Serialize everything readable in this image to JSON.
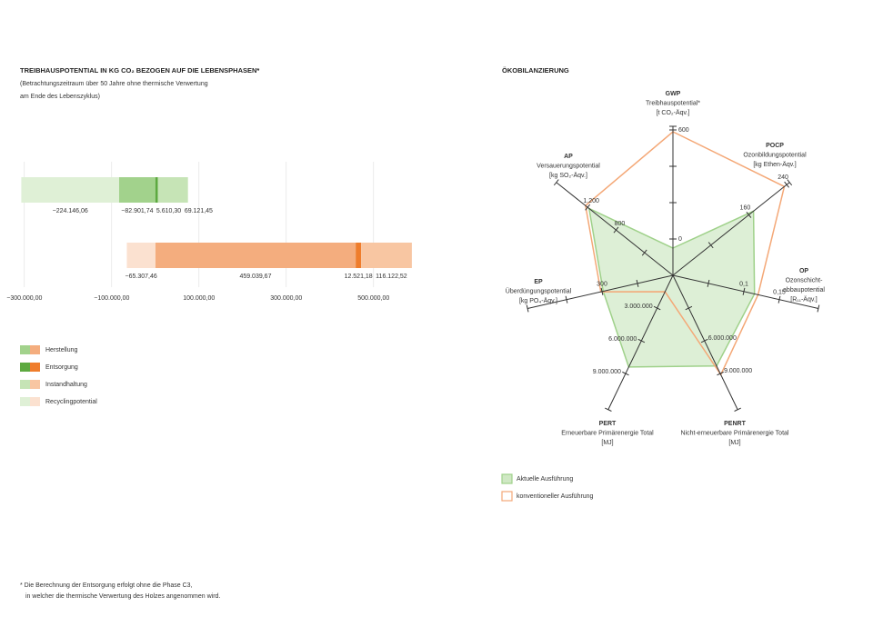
{
  "chart_data": [
    {
      "type": "bar",
      "orientation": "horizontal",
      "stacked": true,
      "title": "TREIBHAUSPOTENTIAL IN KG CO₂ BEZOGEN AUF DIE LEBENSPHASEN*",
      "subtitle": [
        "(Betrachtungszeitraum über 50 Jahre ohne thermische Verwertung",
        "am Ende des Lebenszyklus)"
      ],
      "categories": [
        null,
        null
      ],
      "series": [
        {
          "name": "Herstellung",
          "colors": [
            "#a2d28c",
            "#f4ad7e"
          ],
          "values": [
            -82901.74,
            459039.67
          ],
          "value_labels": [
            "−82.901,74",
            "459.039,67"
          ]
        },
        {
          "name": "Entsorgung",
          "colors": [
            "#5da940",
            "#ef7d2c"
          ],
          "values": [
            5610.3,
            12521.18
          ],
          "value_labels": [
            "5.610,30",
            "12.521,18"
          ]
        },
        {
          "name": "Instandhaltung",
          "colors": [
            "#c6e4b6",
            "#f8c6a2"
          ],
          "values": [
            69121.45,
            116122.52
          ],
          "value_labels": [
            "69.121,45",
            "116.122,52"
          ]
        },
        {
          "name": "Recyclingpotential",
          "colors": [
            "#dff0d6",
            "#fbe1d0"
          ],
          "values": [
            -224146.06,
            -65307.46
          ],
          "value_labels": [
            "−224.146,06",
            "−65.307,46"
          ]
        }
      ],
      "xlim": [
        -310000,
        590000
      ],
      "xticks": [
        {
          "value": -300000,
          "label": "−300.000,00"
        },
        {
          "value": -100000,
          "label": "−100.000,00"
        },
        {
          "value": 100000,
          "label": "100.000,00"
        },
        {
          "value": 300000,
          "label": "300.000,00"
        },
        {
          "value": 500000,
          "label": "500.000,00"
        }
      ],
      "grid": true
    },
    {
      "type": "radar",
      "title": "ÖKOBILANZIERUNG",
      "axes": [
        {
          "name": "GWP",
          "description": [
            "Treibhauspotential*"
          ],
          "unit": "[t CO₂-Äqv.]",
          "lim": [
            -200,
            600
          ],
          "ticks": [
            0,
            600
          ],
          "minor_ticks": [
            200,
            400
          ]
        },
        {
          "name": "POCP",
          "description": [
            "Ozonbildungspotential"
          ],
          "unit": "[kg Ethen-Äqv.]",
          "lim": [
            0,
            240
          ],
          "ticks": [
            160,
            240
          ],
          "minor_ticks": [
            80
          ]
        },
        {
          "name": "OP",
          "description": [
            "Ozonschicht-",
            "abbaupotential"
          ],
          "unit": "[R₁₁-Äqv.]",
          "lim": [
            0,
            0.2
          ],
          "ticks": [
            {
              "value": 0.1,
              "label": "0,1"
            },
            {
              "value": 0.15,
              "label": "0,15"
            }
          ],
          "minor_ticks": [
            0.05
          ]
        },
        {
          "name": "PENRT",
          "description": [
            "Nicht-erneuerbare Primärenergie Total"
          ],
          "unit": "[MJ]",
          "lim": [
            0,
            12000000
          ],
          "ticks": [
            {
              "value": 6000000,
              "label": "6.000.000"
            },
            {
              "value": 9000000,
              "label": "9.000.000"
            }
          ],
          "minor_ticks": [
            3000000
          ]
        },
        {
          "name": "PERT",
          "description": [
            "Erneuerbare Primärenergie Total"
          ],
          "unit": "[MJ]",
          "lim": [
            0,
            12000000
          ],
          "ticks": [
            {
              "value": 3000000,
              "label": "3.000.000"
            },
            {
              "value": 6000000,
              "label": "6.000.000"
            },
            {
              "value": 9000000,
              "label": "9.000.000"
            }
          ],
          "minor_ticks": []
        },
        {
          "name": "EP",
          "description": [
            "Überdüngungspotential"
          ],
          "unit": "[kg PO₄-Äqv.]",
          "lim": [
            0,
            600
          ],
          "ticks": [
            300
          ],
          "minor_ticks": [
            150,
            450
          ]
        },
        {
          "name": "AP",
          "description": [
            "Versauerungspotential"
          ],
          "unit": "[kg SO₂-Äqv.]",
          "lim": [
            0,
            1600
          ],
          "ticks": [
            800,
            {
              "value": 1200,
              "label": "1.200"
            }
          ],
          "minor_ticks": [
            400
          ]
        }
      ],
      "series": [
        {
          "name": "Aktuelle Ausführung",
          "color": "#9fd18a",
          "fill": true,
          "values": [
            -50,
            170,
            0.115,
            8300000,
            8400000,
            295,
            1180
          ]
        },
        {
          "name": "konventioneller Ausführung",
          "color": "#f4a877",
          "fill": false,
          "values": [
            590,
            235,
            0.12,
            9100000,
            1500000,
            305,
            1230
          ]
        }
      ]
    }
  ],
  "footnote": [
    "* Die Berechnung der Entsorgung erfolgt ohne die Phase C3,",
    "in welcher die thermische Verwertung des Holzes angenommen wird."
  ]
}
